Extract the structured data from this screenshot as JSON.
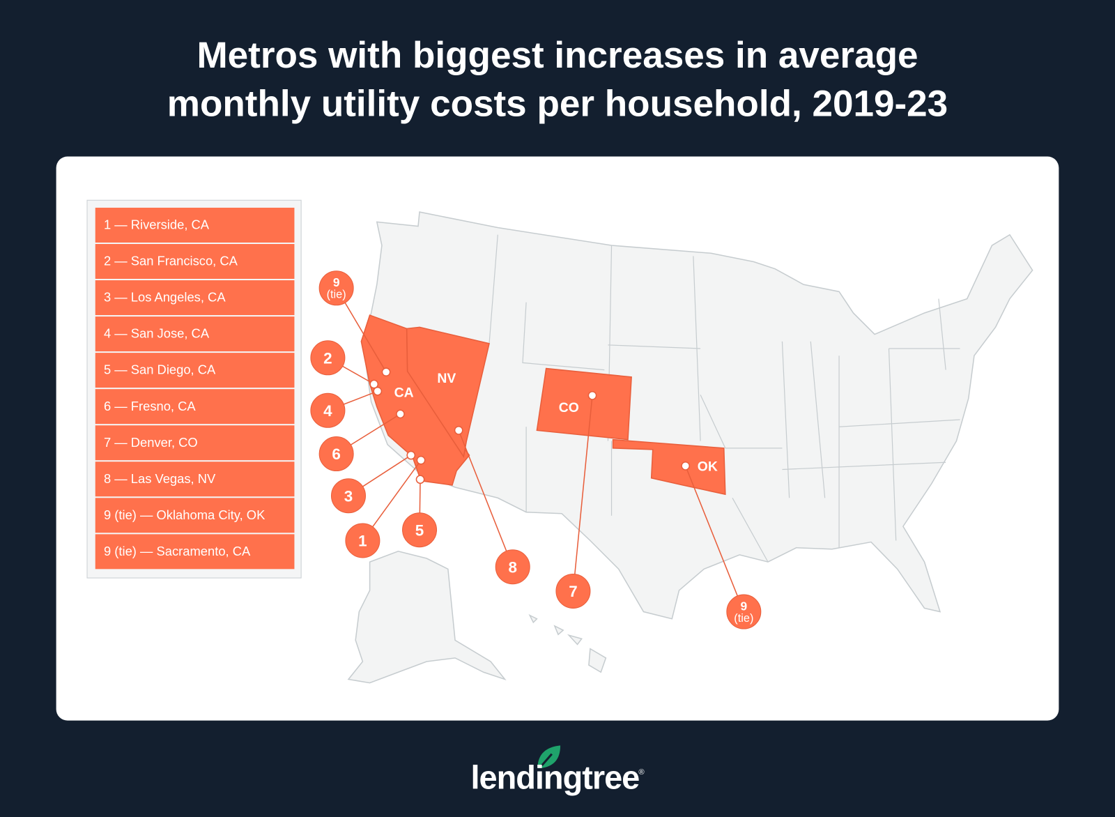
{
  "title": {
    "line1": "Metros with biggest increases in average",
    "line2": "monthly utility costs per household, 2019-23"
  },
  "legend": [
    "1 — Riverside, CA",
    "2 — San Francisco, CA",
    "3 — Los Angeles, CA",
    "4 — San Jose, CA",
    "5 — San Diego, CA",
    "6 — Fresno, CA",
    "7 — Denver, CO",
    "8 — Las Vegas, NV",
    "9 (tie) — Oklahoma City,  OK",
    "9 (tie) — Sacramento, CA"
  ],
  "states": [
    "CA",
    "NV",
    "CO",
    "OK"
  ],
  "markers": [
    {
      "rank": "1",
      "metro": "Riverside, CA"
    },
    {
      "rank": "2",
      "metro": "San Francisco, CA"
    },
    {
      "rank": "3",
      "metro": "Los Angeles, CA"
    },
    {
      "rank": "4",
      "metro": "San Jose, CA"
    },
    {
      "rank": "5",
      "metro": "San Diego, CA"
    },
    {
      "rank": "6",
      "metro": "Fresno, CA"
    },
    {
      "rank": "7",
      "metro": "Denver, CO"
    },
    {
      "rank": "8",
      "metro": "Las Vegas, NV"
    },
    {
      "rank": "9",
      "tie": "(tie)",
      "metro": "Oklahoma City, OK"
    },
    {
      "rank": "9",
      "tie": "(tie)",
      "metro": "Sacramento, CA"
    }
  ],
  "colors": {
    "background": "#131f2f",
    "highlight": "#ff714c",
    "map_base": "#f3f4f4",
    "border": "#c6cccf",
    "logo_leaf": "#1fa36b"
  },
  "logo": {
    "text": "lendingtree",
    "registered": "®"
  }
}
